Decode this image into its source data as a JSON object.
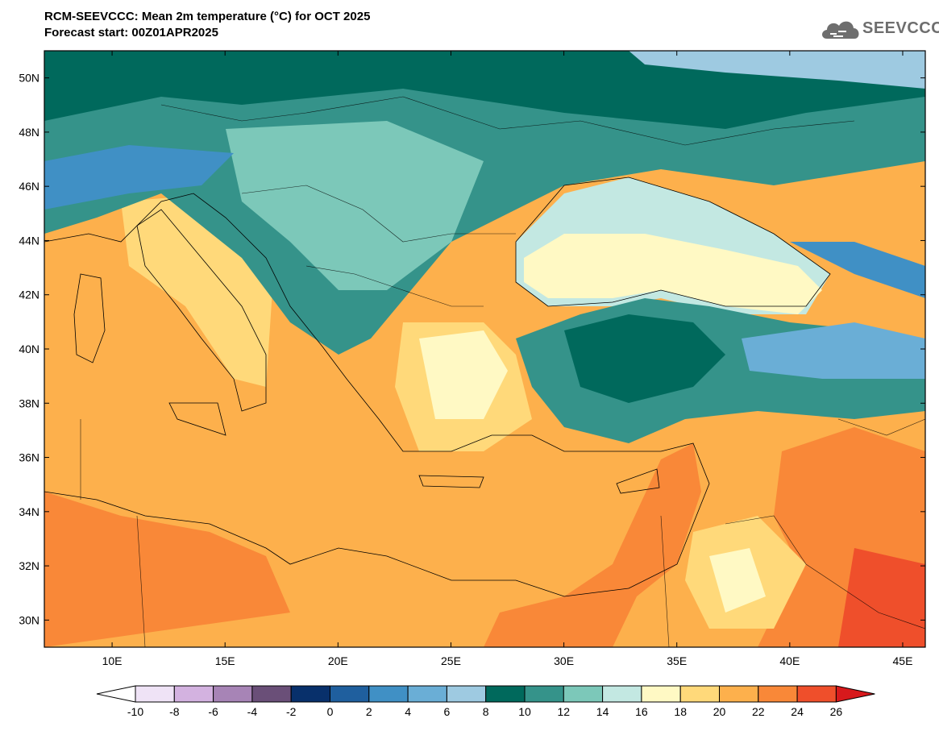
{
  "header": {
    "title_line1": "RCM-SEEVCCC: Mean 2m temperature (°C) for OCT 2025",
    "title_line2": "Forecast start: 00Z01APR2025"
  },
  "logo": {
    "text": "SEEVCCC",
    "icon": "cloud-icon",
    "color": "#6e6e6e"
  },
  "map": {
    "lon_range": [
      7,
      46
    ],
    "lat_range": [
      29,
      51
    ],
    "lat_ticks": [
      "50N",
      "48N",
      "46N",
      "44N",
      "42N",
      "40N",
      "38N",
      "36N",
      "34N",
      "32N",
      "30N"
    ],
    "lon_ticks": [
      "10E",
      "15E",
      "20E",
      "25E",
      "30E",
      "35E",
      "40E",
      "45E"
    ]
  },
  "colorbar": {
    "labels": [
      "-10",
      "-8",
      "-6",
      "-4",
      "-2",
      "0",
      "2",
      "4",
      "6",
      "8",
      "10",
      "12",
      "14",
      "16",
      "18",
      "20",
      "22",
      "24",
      "26"
    ],
    "colors": [
      "#ffffff",
      "#efe3f6",
      "#d3b2e0",
      "#a784b6",
      "#6a4f78",
      "#08306b",
      "#1f5f9e",
      "#4090c5",
      "#6aaed6",
      "#9ecae1",
      "#00695c",
      "#35938a",
      "#7cc8b9",
      "#c3e8e2",
      "#fff9c4",
      "#ffd97a",
      "#fdb04c",
      "#f98838",
      "#ef4f2b",
      "#d7191c"
    ]
  }
}
